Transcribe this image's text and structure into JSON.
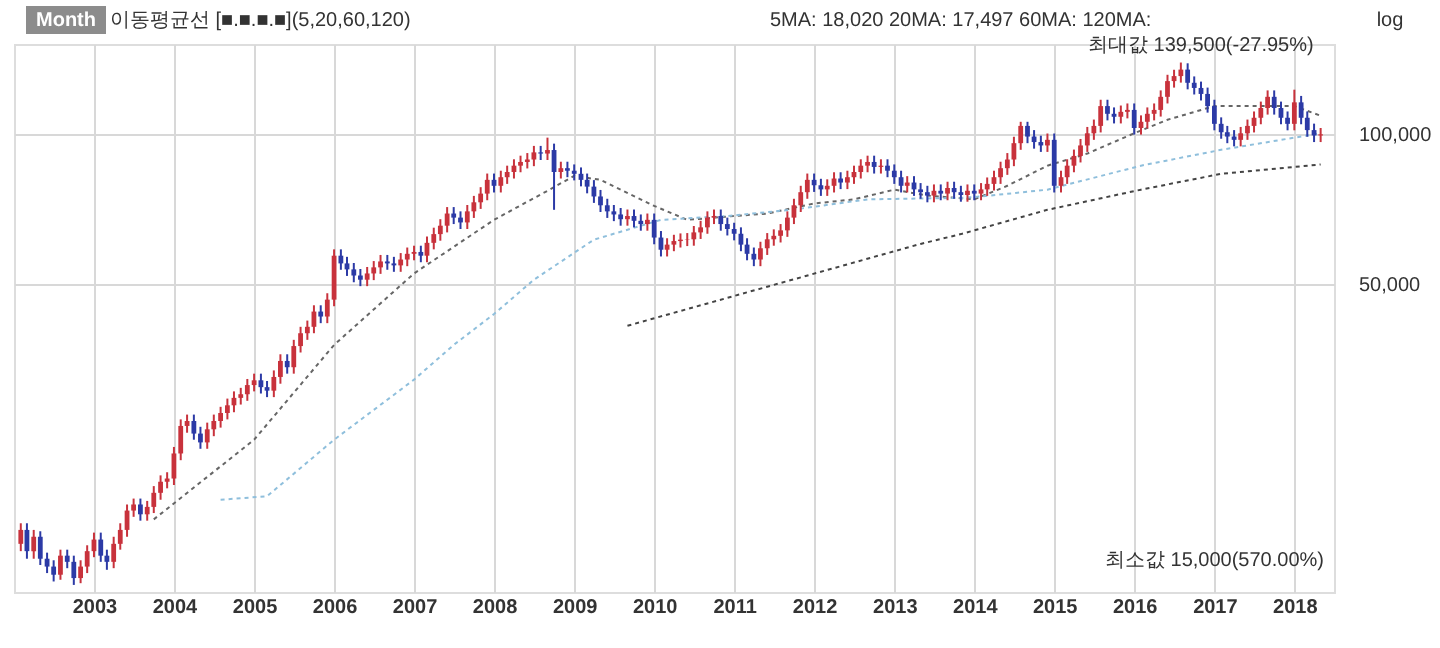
{
  "chart_data": {
    "type": "candlestick",
    "log": true,
    "grid": true,
    "xlim": [
      "2002-01",
      "2018-07"
    ],
    "xticks": [
      "2003",
      "2004",
      "2005",
      "2006",
      "2007",
      "2008",
      "2009",
      "2010",
      "2011",
      "2012",
      "2013",
      "2014",
      "2015",
      "2016",
      "2017",
      "2018"
    ],
    "ylim": [
      12000,
      152000
    ],
    "yticks": [
      {
        "value": 50000,
        "label": "50,000"
      },
      {
        "value": 100000,
        "label": "100,000"
      }
    ],
    "annotations": [
      "Month",
      "이동평균선 [■.■.■.■](5,20,60,120)",
      "5MA:  18,020  20MA:  17,497  60MA:              120MA:",
      "log",
      "최소값 15,000(570.00%)",
      {
        "text": "최대값 139,500(-27.95%)",
        "x": "2016-08",
        "y": 139500
      }
    ],
    "x": [
      "2002-02",
      "2002-03",
      "2002-04",
      "2002-05",
      "2002-06",
      "2002-07",
      "2002-08",
      "2002-09",
      "2002-10",
      "2002-11",
      "2002-12",
      "2003-01",
      "2003-02",
      "2003-03",
      "2003-04",
      "2003-05",
      "2003-06",
      "2003-07",
      "2003-08",
      "2003-09",
      "2003-10",
      "2003-11",
      "2003-12",
      "2004-01",
      "2004-02",
      "2004-03",
      "2004-04",
      "2004-05",
      "2004-06",
      "2004-07",
      "2004-08",
      "2004-09",
      "2004-10",
      "2004-11",
      "2004-12",
      "2005-01",
      "2005-02",
      "2005-03",
      "2005-04",
      "2005-05",
      "2005-06",
      "2005-07",
      "2005-08",
      "2005-09",
      "2005-10",
      "2005-11",
      "2005-12",
      "2006-01",
      "2006-02",
      "2006-03",
      "2006-04",
      "2006-05",
      "2006-06",
      "2006-07",
      "2006-08",
      "2006-09",
      "2006-10",
      "2006-11",
      "2006-12",
      "2007-01",
      "2007-02",
      "2007-03",
      "2007-04",
      "2007-05",
      "2007-06",
      "2007-07",
      "2007-08",
      "2007-09",
      "2007-10",
      "2007-11",
      "2007-12",
      "2008-01",
      "2008-02",
      "2008-03",
      "2008-04",
      "2008-05",
      "2008-06",
      "2008-07",
      "2008-08",
      "2008-09",
      "2008-10",
      "2008-11",
      "2008-12",
      "2009-01",
      "2009-02",
      "2009-03",
      "2009-04",
      "2009-05",
      "2009-06",
      "2009-07",
      "2009-08",
      "2009-09",
      "2009-10",
      "2009-11",
      "2009-12",
      "2010-01",
      "2010-02",
      "2010-03",
      "2010-04",
      "2010-05",
      "2010-06",
      "2010-07",
      "2010-08",
      "2010-09",
      "2010-10",
      "2010-11",
      "2010-12",
      "2011-01",
      "2011-02",
      "2011-03",
      "2011-04",
      "2011-05",
      "2011-06",
      "2011-07",
      "2011-08",
      "2011-09",
      "2011-10",
      "2011-11",
      "2011-12",
      "2012-01",
      "2012-02",
      "2012-03",
      "2012-04",
      "2012-05",
      "2012-06",
      "2012-07",
      "2012-08",
      "2012-09",
      "2012-10",
      "2012-11",
      "2012-12",
      "2013-01",
      "2013-02",
      "2013-03",
      "2013-04",
      "2013-05",
      "2013-06",
      "2013-07",
      "2013-08",
      "2013-09",
      "2013-10",
      "2013-11",
      "2013-12",
      "2014-01",
      "2014-02",
      "2014-03",
      "2014-04",
      "2014-05",
      "2014-06",
      "2014-07",
      "2014-08",
      "2014-09",
      "2014-10",
      "2014-11",
      "2014-12",
      "2015-01",
      "2015-02",
      "2015-03",
      "2015-04",
      "2015-05",
      "2015-06",
      "2015-07",
      "2015-08",
      "2015-09",
      "2015-10",
      "2015-11",
      "2015-12",
      "2016-01",
      "2016-02",
      "2016-03",
      "2016-04",
      "2016-05",
      "2016-06",
      "2016-07",
      "2016-08",
      "2016-09",
      "2016-10",
      "2016-11",
      "2016-12",
      "2017-01",
      "2017-02",
      "2017-03",
      "2017-04",
      "2017-05",
      "2017-06",
      "2017-07",
      "2017-08",
      "2017-09",
      "2017-10",
      "2017-11",
      "2017-12",
      "2018-01",
      "2018-02",
      "2018-03",
      "2018-04",
      "2018-05"
    ],
    "ohlc": [
      [
        15000,
        16500,
        14500,
        16000
      ],
      [
        16000,
        16500,
        14000,
        14500
      ],
      [
        14500,
        16000,
        14000,
        15500
      ],
      [
        15500,
        15900,
        13600,
        14000
      ],
      [
        14000,
        14400,
        13100,
        13500
      ],
      [
        13500,
        13900,
        12600,
        13000
      ],
      [
        13000,
        14600,
        12700,
        14200
      ],
      [
        14200,
        14600,
        13400,
        13800
      ],
      [
        13800,
        14200,
        12400,
        12800
      ],
      [
        12800,
        13900,
        12500,
        13500
      ],
      [
        13500,
        14900,
        13100,
        14500
      ],
      [
        14500,
        15800,
        14100,
        15300
      ],
      [
        15300,
        15800,
        13800,
        14200
      ],
      [
        14200,
        14600,
        13300,
        13800
      ],
      [
        13800,
        15500,
        13400,
        15000
      ],
      [
        15000,
        16500,
        14600,
        16000
      ],
      [
        16000,
        18000,
        15500,
        17500
      ],
      [
        17500,
        18500,
        17000,
        18000
      ],
      [
        18000,
        18500,
        16700,
        17200
      ],
      [
        17200,
        18300,
        16700,
        17800
      ],
      [
        17800,
        19600,
        17300,
        19000
      ],
      [
        19000,
        20600,
        18400,
        20000
      ],
      [
        20000,
        20900,
        19400,
        20300
      ],
      [
        20300,
        23500,
        19700,
        22800
      ],
      [
        22800,
        26700,
        22100,
        25900
      ],
      [
        25900,
        27300,
        25100,
        26500
      ],
      [
        26500,
        27300,
        24300,
        25000
      ],
      [
        25000,
        25800,
        23300,
        24000
      ],
      [
        24000,
        26300,
        23300,
        25500
      ],
      [
        25500,
        27300,
        24700,
        26500
      ],
      [
        26500,
        28300,
        25700,
        27500
      ],
      [
        27500,
        29400,
        26700,
        28500
      ],
      [
        28500,
        30400,
        27600,
        29500
      ],
      [
        29500,
        30900,
        28600,
        30000
      ],
      [
        30000,
        32200,
        29100,
        31300
      ],
      [
        31300,
        33000,
        30400,
        32000
      ],
      [
        32000,
        33000,
        30100,
        31000
      ],
      [
        31000,
        31900,
        29600,
        30500
      ],
      [
        30500,
        33500,
        29600,
        32500
      ],
      [
        32500,
        36100,
        31500,
        35000
      ],
      [
        35000,
        36100,
        33000,
        34000
      ],
      [
        34000,
        38600,
        33000,
        37500
      ],
      [
        37500,
        41000,
        36400,
        39800
      ],
      [
        39800,
        42200,
        38600,
        41000
      ],
      [
        41000,
        45300,
        39800,
        44000
      ],
      [
        44000,
        45300,
        41700,
        43000
      ],
      [
        43000,
        47900,
        41700,
        46500
      ],
      [
        46500,
        58700,
        45100,
        57000
      ],
      [
        57000,
        58700,
        53400,
        55000
      ],
      [
        55000,
        56700,
        51900,
        53500
      ],
      [
        53500,
        55100,
        50400,
        52000
      ],
      [
        52000,
        53600,
        49500,
        51000
      ],
      [
        51000,
        54100,
        49500,
        52500
      ],
      [
        52500,
        55600,
        50900,
        54000
      ],
      [
        54000,
        57200,
        52400,
        55500
      ],
      [
        55500,
        57200,
        53400,
        55000
      ],
      [
        55000,
        56700,
        52900,
        54500
      ],
      [
        54500,
        57700,
        52900,
        56000
      ],
      [
        56000,
        59200,
        54300,
        57500
      ],
      [
        57500,
        59700,
        55800,
        58000
      ],
      [
        58000,
        59700,
        55300,
        57000
      ],
      [
        57000,
        62300,
        55300,
        60500
      ],
      [
        60500,
        64900,
        58700,
        63000
      ],
      [
        63000,
        67500,
        61100,
        65500
      ],
      [
        65500,
        71400,
        63500,
        69300
      ],
      [
        69300,
        71400,
        66000,
        68000
      ],
      [
        68000,
        70000,
        64500,
        66500
      ],
      [
        66500,
        72100,
        64500,
        70000
      ],
      [
        70000,
        75200,
        67900,
        73000
      ],
      [
        73000,
        78300,
        70800,
        76000
      ],
      [
        76000,
        83400,
        73700,
        81000
      ],
      [
        81000,
        83400,
        76400,
        78800
      ],
      [
        78800,
        84500,
        76400,
        82000
      ],
      [
        82000,
        86500,
        79500,
        84000
      ],
      [
        84000,
        89100,
        81500,
        86500
      ],
      [
        86500,
        90600,
        83900,
        88000
      ],
      [
        88000,
        91700,
        85400,
        89000
      ],
      [
        89000,
        94800,
        86300,
        92000
      ],
      [
        92000,
        94800,
        88800,
        91500
      ],
      [
        91500,
        98500,
        88800,
        93000
      ],
      [
        93000,
        95800,
        70500,
        84000
      ],
      [
        84000,
        88100,
        81500,
        85500
      ],
      [
        85500,
        88100,
        82000,
        84500
      ],
      [
        84500,
        87000,
        80800,
        83300
      ],
      [
        83300,
        85800,
        78600,
        81000
      ],
      [
        81000,
        83400,
        76100,
        78500
      ],
      [
        78500,
        80900,
        72800,
        75000
      ],
      [
        75000,
        77300,
        69800,
        72000
      ],
      [
        72000,
        74200,
        67900,
        70000
      ],
      [
        70000,
        72100,
        66900,
        69000
      ],
      [
        69000,
        71100,
        65500,
        67500
      ],
      [
        67500,
        70600,
        65500,
        68500
      ],
      [
        68500,
        70600,
        65000,
        67000
      ],
      [
        67000,
        69000,
        64000,
        66000
      ],
      [
        66000,
        69300,
        64000,
        67300
      ],
      [
        67300,
        69300,
        60100,
        62000
      ],
      [
        62000,
        63900,
        56800,
        58600
      ],
      [
        58600,
        61800,
        56800,
        60000
      ],
      [
        60000,
        62800,
        58200,
        61000
      ],
      [
        61000,
        63200,
        59200,
        61400
      ],
      [
        61400,
        63300,
        59600,
        61500
      ],
      [
        61500,
        65400,
        59700,
        63500
      ],
      [
        63500,
        67000,
        61600,
        65000
      ],
      [
        65000,
        70000,
        63100,
        68000
      ],
      [
        68000,
        70600,
        66000,
        68500
      ],
      [
        68500,
        70600,
        64000,
        66000
      ],
      [
        66000,
        68000,
        62600,
        64500
      ],
      [
        64500,
        66400,
        61200,
        63100
      ],
      [
        63100,
        65000,
        58200,
        60000
      ],
      [
        60000,
        61800,
        55800,
        57500
      ],
      [
        57500,
        59200,
        54300,
        56000
      ],
      [
        56000,
        60800,
        54300,
        59000
      ],
      [
        59000,
        63300,
        57200,
        61500
      ],
      [
        61500,
        64400,
        59700,
        62500
      ],
      [
        62500,
        66000,
        60600,
        64100
      ],
      [
        64100,
        70000,
        62200,
        68000
      ],
      [
        68000,
        74200,
        66000,
        72000
      ],
      [
        72000,
        78800,
        69800,
        76500
      ],
      [
        76500,
        83400,
        74200,
        81000
      ],
      [
        81000,
        83400,
        76600,
        79000
      ],
      [
        79000,
        81400,
        75200,
        77500
      ],
      [
        77500,
        81200,
        75200,
        78800
      ],
      [
        78800,
        83900,
        76400,
        81500
      ],
      [
        81500,
        83900,
        77600,
        80000
      ],
      [
        80000,
        84500,
        77600,
        82000
      ],
      [
        82000,
        86500,
        79500,
        84000
      ],
      [
        84000,
        89100,
        81500,
        86500
      ],
      [
        86500,
        90600,
        83900,
        88000
      ],
      [
        88000,
        90600,
        83400,
        86000
      ],
      [
        86000,
        89100,
        83400,
        86500
      ],
      [
        86500,
        89100,
        82000,
        84500
      ],
      [
        84500,
        87000,
        79500,
        82000
      ],
      [
        82000,
        84500,
        76400,
        78800
      ],
      [
        78800,
        82400,
        76400,
        80000
      ],
      [
        80000,
        82400,
        75200,
        77500
      ],
      [
        77500,
        79800,
        74200,
        76500
      ],
      [
        76500,
        78800,
        73000,
        75300
      ],
      [
        75300,
        79300,
        73000,
        77000
      ],
      [
        77000,
        79300,
        73700,
        76000
      ],
      [
        76000,
        80300,
        73700,
        78000
      ],
      [
        78000,
        80300,
        74200,
        76500
      ],
      [
        76500,
        78800,
        73200,
        75500
      ],
      [
        75500,
        79300,
        73200,
        77000
      ],
      [
        77000,
        79300,
        73700,
        76000
      ],
      [
        76000,
        79800,
        73700,
        77500
      ],
      [
        77500,
        81900,
        75200,
        79500
      ],
      [
        79500,
        84500,
        77100,
        82000
      ],
      [
        82000,
        88100,
        79500,
        85500
      ],
      [
        85500,
        91700,
        82900,
        89000
      ],
      [
        89000,
        98900,
        86300,
        96000
      ],
      [
        96000,
        106000,
        93100,
        104000
      ],
      [
        104000,
        106000,
        96000,
        99000
      ],
      [
        99000,
        102000,
        93600,
        96500
      ],
      [
        96500,
        99400,
        92200,
        95000
      ],
      [
        95000,
        100400,
        92200,
        97500
      ],
      [
        97500,
        100400,
        76400,
        78800
      ],
      [
        78800,
        84500,
        76400,
        82000
      ],
      [
        82000,
        89100,
        79500,
        86500
      ],
      [
        86500,
        93200,
        83900,
        90500
      ],
      [
        90500,
        97900,
        87800,
        95000
      ],
      [
        95000,
        103500,
        92200,
        100500
      ],
      [
        100500,
        107100,
        97500,
        104000
      ],
      [
        104000,
        117400,
        100900,
        114000
      ],
      [
        114000,
        117400,
        106700,
        110000
      ],
      [
        110000,
        113300,
        105200,
        108500
      ],
      [
        108500,
        114300,
        105200,
        111000
      ],
      [
        111000,
        115400,
        107700,
        112000
      ],
      [
        112000,
        115400,
        99900,
        103000
      ],
      [
        103000,
        109200,
        99900,
        106000
      ],
      [
        106000,
        113300,
        102800,
        110000
      ],
      [
        110000,
        115400,
        106700,
        112000
      ],
      [
        112000,
        122600,
        108600,
        119000
      ],
      [
        119000,
        131800,
        115400,
        128000
      ],
      [
        128000,
        134900,
        124200,
        131000
      ],
      [
        131000,
        139500,
        127100,
        135000
      ],
      [
        135000,
        139000,
        123200,
        127000
      ],
      [
        127000,
        130800,
        120300,
        124000
      ],
      [
        124000,
        127700,
        117000,
        120600
      ],
      [
        120600,
        124200,
        110600,
        114000
      ],
      [
        114000,
        117400,
        101900,
        105000
      ],
      [
        105000,
        108200,
        98000,
        101000
      ],
      [
        101000,
        104000,
        96000,
        99000
      ],
      [
        99000,
        102000,
        94600,
        97500
      ],
      [
        97500,
        103500,
        94600,
        100500
      ],
      [
        100500,
        107100,
        97500,
        104000
      ],
      [
        104000,
        111200,
        100900,
        108000
      ],
      [
        108000,
        116400,
        104800,
        113000
      ],
      [
        113000,
        122600,
        109600,
        119000
      ],
      [
        119000,
        122600,
        109600,
        113000
      ],
      [
        113000,
        116400,
        104800,
        108000
      ],
      [
        108000,
        111200,
        101900,
        105000
      ],
      [
        105000,
        123000,
        101900,
        116000
      ],
      [
        116000,
        119500,
        104800,
        108000
      ],
      [
        108000,
        111200,
        98900,
        102000
      ],
      [
        102000,
        105100,
        96500,
        99500
      ],
      [
        99500,
        103000,
        96500,
        100000
      ]
    ],
    "series": [
      {
        "type": "line",
        "color": "#666666",
        "line_style": "dotted",
        "x": [
          "2003-10",
          "2005-01",
          "2006-01",
          "2007-01",
          "2008-01",
          "2008-09",
          "2009-01",
          "2009-05",
          "2010-01",
          "2010-06",
          "2011-01",
          "2011-06",
          "2012-01",
          "2012-07",
          "2013-01",
          "2013-06",
          "2014-01",
          "2014-06",
          "2014-12",
          "2015-06",
          "2016-01",
          "2016-06",
          "2017-01",
          "2017-06",
          "2018-01",
          "2018-05"
        ],
        "values": [
          16800,
          24300,
          37700,
          52500,
          67300,
          77000,
          82500,
          81000,
          71800,
          67300,
          68500,
          69300,
          72600,
          74000,
          77400,
          75300,
          74000,
          78800,
          86500,
          91500,
          100500,
          107000,
          114000,
          114000,
          114000,
          109000
        ]
      },
      {
        "type": "line",
        "color": "#8fbfdc",
        "line_style": "dotted",
        "x": [
          "2004-08",
          "2005-03",
          "2006-01",
          "2007-01",
          "2007-07",
          "2008-01",
          "2008-07",
          "2009-04",
          "2010-02",
          "2010-12",
          "2011-10",
          "2012-09",
          "2013-11",
          "2014-02",
          "2014-12",
          "2016-02",
          "2017-02",
          "2018-05"
        ],
        "values": [
          18400,
          18700,
          24300,
          32100,
          37700,
          43500,
          51000,
          61400,
          67300,
          68500,
          70600,
          74000,
          74500,
          75000,
          77400,
          86500,
          93100,
          100500
        ]
      },
      {
        "type": "line",
        "color": "#444444",
        "line_style": "dotted",
        "x": [
          "2009-09",
          "2013-05",
          "2013-11",
          "2014-12",
          "2016-02",
          "2017-02",
          "2018-05"
        ],
        "values": [
          41200,
          60200,
          63000,
          70500,
          77400,
          83300,
          87000
        ]
      }
    ]
  }
}
